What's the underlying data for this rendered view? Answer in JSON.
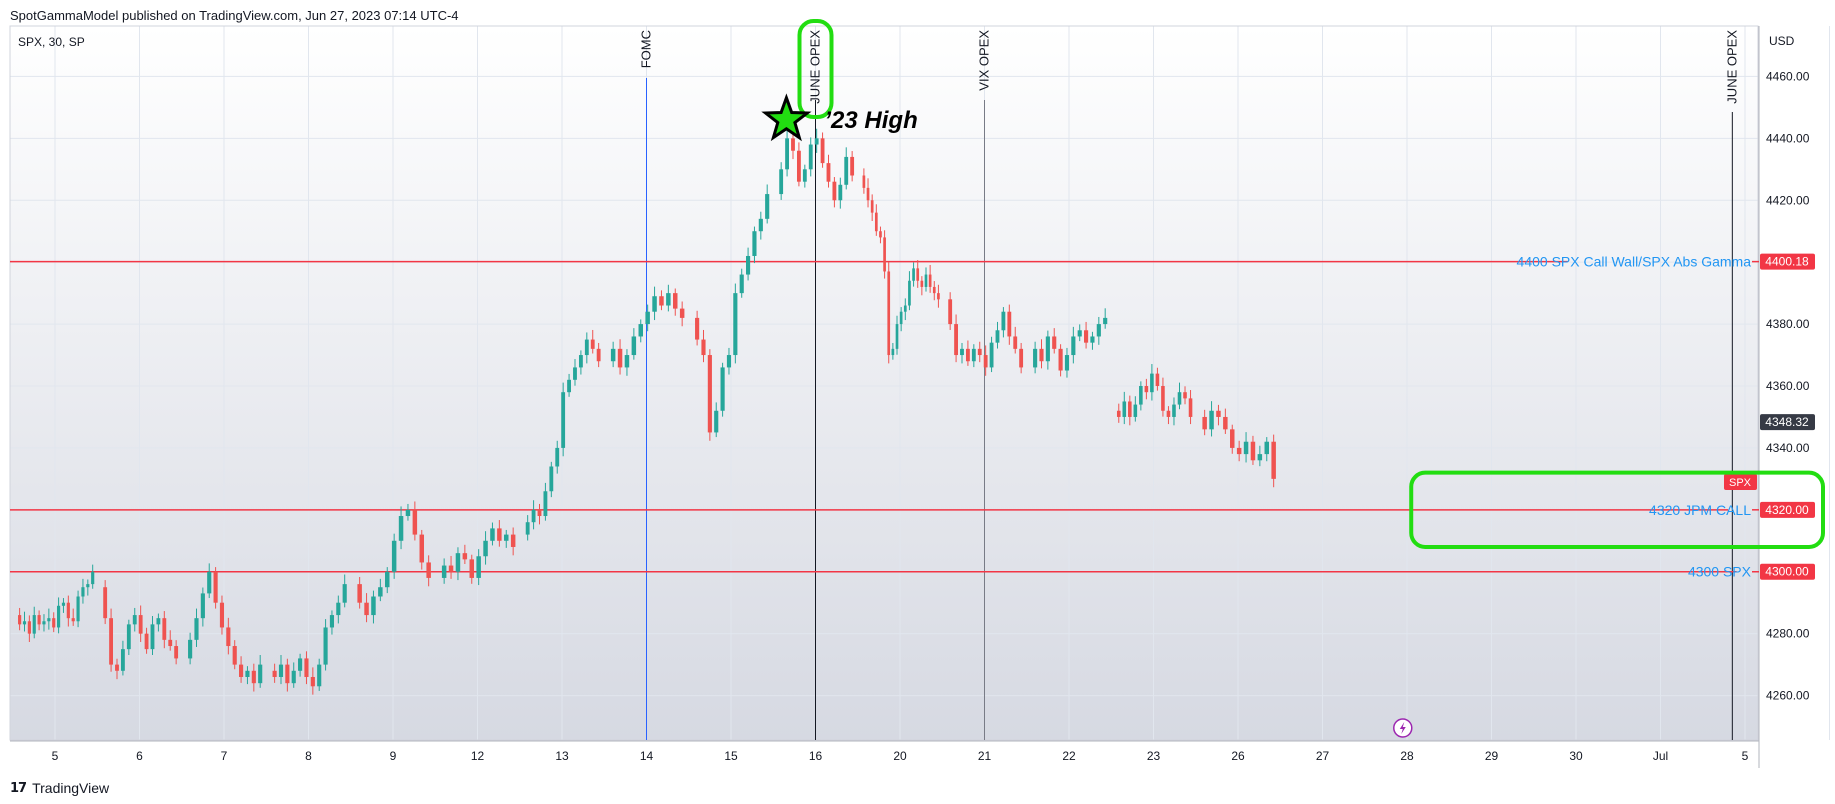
{
  "header": {
    "published": "SpotGammaModel published on TradingView.com, Jun 27, 2023 07:14 UTC-4"
  },
  "footer": {
    "brand": "TradingView",
    "logo": "tradingview-logo-icon"
  },
  "chart_data": {
    "type": "candlestick",
    "symbol_label": "SPX, 30, SP",
    "currency": "USD",
    "ylim": [
      4245,
      4475
    ],
    "y_ticks": [
      "4260.00",
      "4280.00",
      "4300.00",
      "4320.00",
      "4340.00",
      "4360.00",
      "4380.00",
      "4400.00",
      "4420.00",
      "4440.00",
      "4460.00"
    ],
    "x_categories": [
      "5",
      "6",
      "7",
      "8",
      "9",
      "12",
      "13",
      "14",
      "15",
      "16",
      "20",
      "21",
      "22",
      "23",
      "26",
      "27",
      "28",
      "29",
      "30",
      "Jul",
      "5"
    ],
    "grid": true,
    "colors": {
      "up": "#26a69a",
      "down": "#ef5350",
      "level_line": "#f23645",
      "level_text": "#2196f3",
      "highlight": "#22dd11"
    },
    "candles": [
      {
        "day_index": 0,
        "points": [
          4286,
          4283,
          4284,
          4280,
          4286,
          4283,
          4284,
          4285,
          4282,
          4289,
          4290,
          4285,
          4284,
          4292,
          4295,
          4296,
          4300
        ]
      },
      {
        "day_index": 1,
        "points": [
          4295,
          4285,
          4270,
          4268,
          4275,
          4283,
          4286,
          4280,
          4275,
          4283,
          4285,
          4278,
          4276,
          4272
        ]
      },
      {
        "day_index": 2,
        "points": [
          4272,
          4278,
          4285,
          4293,
          4300,
          4290,
          4282,
          4276,
          4270,
          4266,
          4268,
          4264,
          4270
        ]
      },
      {
        "day_index": 3,
        "points": [
          4268,
          4266,
          4270,
          4264,
          4268,
          4272,
          4266,
          4263,
          4270,
          4282,
          4286,
          4290,
          4296
        ]
      },
      {
        "day_index": 4,
        "points": [
          4296,
          4290,
          4286,
          4292,
          4295,
          4300,
          4310,
          4318,
          4320,
          4312,
          4303,
          4298
        ]
      },
      {
        "day_index": 5,
        "points": [
          4298,
          4302,
          4300,
          4306,
          4304,
          4298,
          4305,
          4310,
          4314,
          4310,
          4312,
          4308
        ]
      },
      {
        "day_index": 6,
        "points": [
          4312,
          4316,
          4320,
          4318,
          4326,
          4334,
          4340,
          4358,
          4362,
          4366,
          4370,
          4375,
          4372,
          4368
        ]
      },
      {
        "day_index": 7,
        "points": [
          4368,
          4372,
          4366,
          4370,
          4376,
          4380,
          4384,
          4389,
          4386,
          4390,
          4385,
          4382
        ]
      },
      {
        "day_index": 8,
        "points": [
          4382,
          4375,
          4370,
          4345,
          4352,
          4366,
          4370,
          4390,
          4396,
          4402,
          4410,
          4414,
          4422
        ]
      },
      {
        "day_index": 9,
        "points": [
          4422,
          4430,
          4440,
          4436,
          4426,
          4430,
          4438,
          4440,
          4432,
          4426,
          4420,
          4425,
          4434,
          4428
        ]
      },
      {
        "day_index": 10,
        "points": [
          4428,
          4424,
          4420,
          4416,
          4410,
          4408,
          4397,
          4370,
          4372,
          4380,
          4384,
          4386,
          4394,
          4398,
          4394,
          4392,
          4396,
          4392,
          4390,
          4388
        ]
      },
      {
        "day_index": 11,
        "points": [
          4388,
          4380,
          4370,
          4372,
          4368,
          4372,
          4370,
          4366,
          4374,
          4378,
          4384,
          4376,
          4372,
          4366
        ]
      },
      {
        "day_index": 12,
        "points": [
          4366,
          4372,
          4368,
          4376,
          4372,
          4365,
          4370,
          4376,
          4378,
          4374,
          4376,
          4380,
          4382
        ]
      },
      {
        "day_index": 13,
        "points": [
          4352,
          4350,
          4355,
          4350,
          4354,
          4360,
          4358,
          4364,
          4360,
          4352,
          4350,
          4354,
          4358,
          4356,
          4350
        ]
      },
      {
        "day_index": 14,
        "points": [
          4350,
          4346,
          4352,
          4350,
          4346,
          4340,
          4338,
          4342,
          4336,
          4338,
          4342,
          4330
        ]
      }
    ],
    "vertical_events": [
      {
        "label": "FOMC",
        "x_day": 7,
        "color": "#2962ff",
        "highlight": false
      },
      {
        "label": "JUNE OPEX",
        "x_day": 9,
        "color": "#131722",
        "highlight": true
      },
      {
        "label": "VIX OPEX",
        "x_day": 11,
        "color": "#787b86",
        "highlight": false
      },
      {
        "label": "JUNE OPEX",
        "x_day": 19.85,
        "color": "#131722",
        "highlight": false
      }
    ],
    "horizontal_levels": [
      {
        "value": 4400.18,
        "label": "4400 SPX Call Wall/SPX Abs Gamma",
        "badge": "4400.18",
        "x_end_day": 17.9
      },
      {
        "value": 4320.0,
        "label": "4320 JPM CALL",
        "badge": "4320.00",
        "x_end_day": 19.8
      },
      {
        "value": 4300.0,
        "label": "4300 SPX",
        "badge": "4300.00",
        "x_end_day": 19.9
      }
    ],
    "price_badges": [
      {
        "label": "4348.32",
        "value": 4348.32,
        "color": "#363a45"
      }
    ],
    "symbol_badge": {
      "label": "SPX",
      "value": 4329,
      "color": "#f23645"
    },
    "annotations": [
      {
        "type": "star",
        "label": "’23 High",
        "x_day": 8.75,
        "value": 4446,
        "icon": "star-icon"
      },
      {
        "type": "lightning",
        "icon": "lightning-icon",
        "x_day": 15.95
      }
    ],
    "highlight_box": {
      "x_day_start": 16.05,
      "x_day_end": 21.0,
      "value_top": 4332,
      "value_bottom": 4308
    }
  }
}
